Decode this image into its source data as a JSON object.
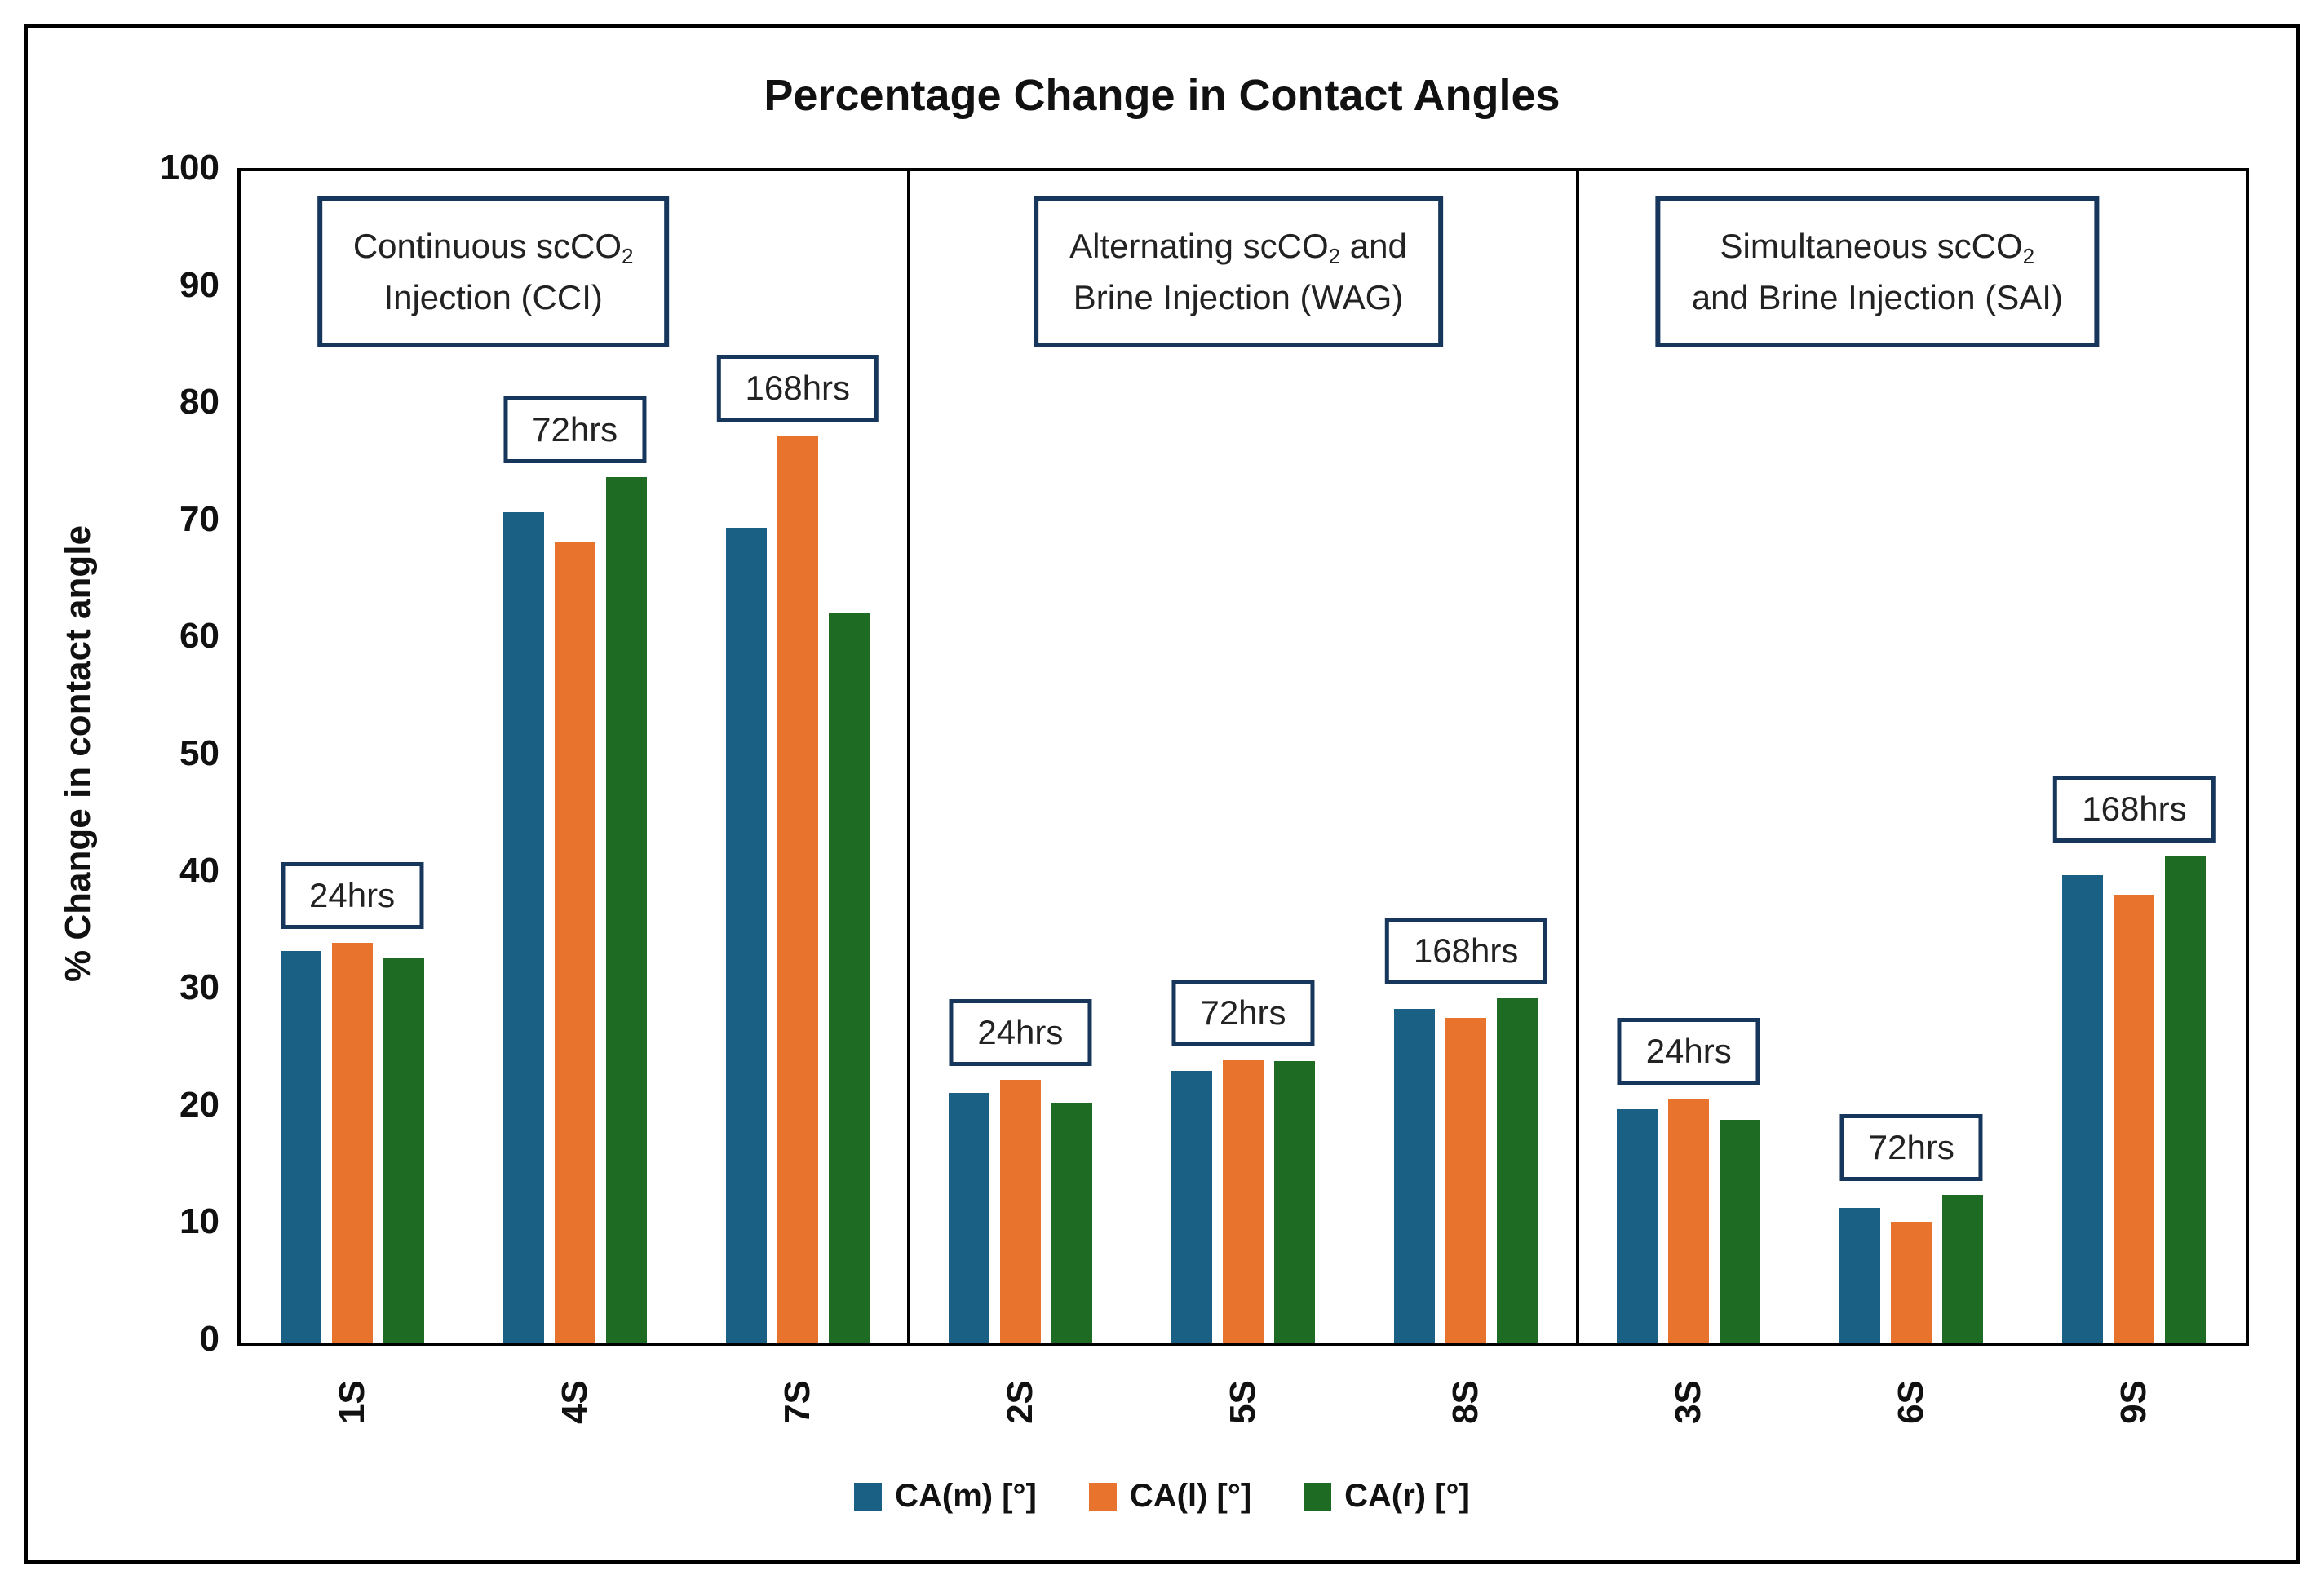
{
  "chart_data": {
    "type": "bar",
    "title": "Percentage Change in Contact Angles",
    "ylabel": "% Change in contact angle",
    "ylim": [
      0,
      100
    ],
    "yticks": [
      0,
      10,
      20,
      30,
      40,
      50,
      60,
      70,
      80,
      90,
      100
    ],
    "grid": false,
    "legend_position": "bottom-center",
    "categories": [
      "1S",
      "4S",
      "7S",
      "2S",
      "5S",
      "8S",
      "3S",
      "6S",
      "9S"
    ],
    "series": [
      {
        "name": "CA(m) [°]",
        "color": "#1A5F84",
        "values": [
          33.4,
          70.9,
          69.6,
          21.3,
          23.2,
          28.5,
          19.9,
          11.5,
          39.9
        ]
      },
      {
        "name": "CA(l) [°]",
        "color": "#E8732D",
        "values": [
          34.1,
          68.3,
          77.4,
          22.4,
          24.1,
          27.7,
          20.8,
          10.3,
          38.2
        ]
      },
      {
        "name": "CA(r) [°]",
        "color": "#1E6C23",
        "values": [
          32.8,
          73.9,
          62.3,
          20.5,
          24.0,
          29.4,
          19.0,
          12.6,
          41.5
        ]
      }
    ],
    "group_annotations": [
      "24hrs",
      "72hrs",
      "168hrs",
      "24hrs",
      "72hrs",
      "168hrs",
      "24hrs",
      "72hrs",
      "168hrs"
    ],
    "sections": [
      {
        "id": "CCI",
        "lines": [
          [
            {
              "t": "Continuous scCO"
            },
            {
              "t": "2",
              "sub": true
            }
          ],
          [
            {
              "t": "Injection (CCI)"
            }
          ]
        ]
      },
      {
        "id": "WAG",
        "lines": [
          [
            {
              "t": "Alternating scCO"
            },
            {
              "t": "2",
              "sub": true
            },
            {
              "t": " and"
            }
          ],
          [
            {
              "t": "Brine Injection (WAG)"
            }
          ]
        ]
      },
      {
        "id": "SAI",
        "lines": [
          [
            {
              "t": "Simultaneous scCO"
            },
            {
              "t": "2",
              "sub": true
            }
          ],
          [
            {
              "t": "and Brine Injection (SAI)"
            }
          ]
        ]
      }
    ],
    "annotation_border_color": "#16365C",
    "axis_color": "#000000",
    "background_color": "#FFFFFF"
  }
}
